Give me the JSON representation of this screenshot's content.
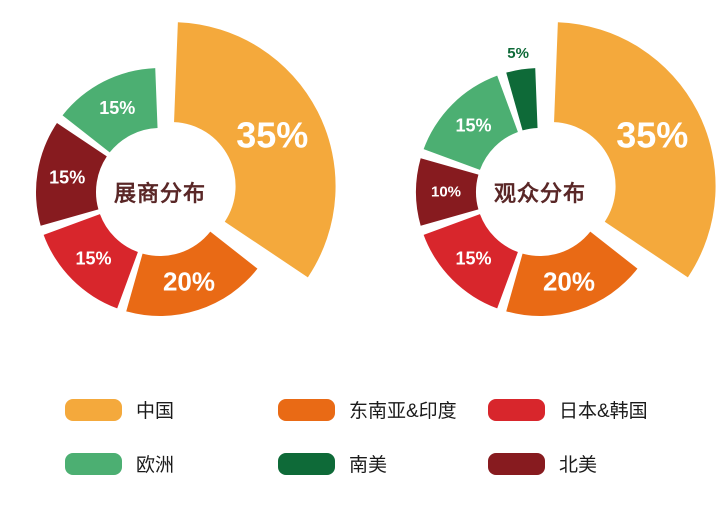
{
  "page": {
    "background": "#ffffff"
  },
  "chart_data": [
    {
      "type": "pie",
      "donut": true,
      "title": "展商分布",
      "title_color": "#5a2727",
      "unit": "%",
      "direction": "clockwise",
      "start_angle": 0,
      "categories": [
        "中国",
        "东南亚&印度",
        "日本&韩国",
        "北美",
        "欧洲"
      ],
      "values": [
        35,
        20,
        15,
        15,
        15
      ],
      "colors": [
        "#F4A93C",
        "#E96A15",
        "#D8262C",
        "#871B1F",
        "#4CAF72"
      ],
      "label_colors": [
        "#ffffff",
        "#ffffff",
        "#ffffff",
        "#ffffff",
        "#ffffff"
      ],
      "label_sizes": [
        36,
        26,
        18,
        18,
        18
      ],
      "slice_styles": [
        "exploded-large",
        "normal",
        "normal",
        "normal",
        "normal"
      ]
    },
    {
      "type": "pie",
      "donut": true,
      "title": "观众分布",
      "title_color": "#5a2727",
      "unit": "%",
      "direction": "clockwise",
      "start_angle": 0,
      "categories": [
        "中国",
        "东南亚&印度",
        "日本&韩国",
        "北美",
        "欧洲",
        "南美"
      ],
      "values": [
        35,
        20,
        15,
        10,
        15,
        5
      ],
      "colors": [
        "#F4A93C",
        "#E96A15",
        "#D8262C",
        "#871B1F",
        "#4CAF72",
        "#0E6A38"
      ],
      "label_colors": [
        "#ffffff",
        "#ffffff",
        "#ffffff",
        "#ffffff",
        "#ffffff",
        "#0E6A38"
      ],
      "label_sizes": [
        36,
        26,
        18,
        15,
        18,
        15
      ],
      "slice_styles": [
        "exploded-large",
        "normal",
        "normal",
        "normal",
        "normal",
        "outside-label"
      ]
    }
  ],
  "legend": {
    "items": [
      {
        "label": "中国",
        "color": "#F4A93C"
      },
      {
        "label": "东南亚&印度",
        "color": "#E96A15"
      },
      {
        "label": "日本&韩国",
        "color": "#D8262C"
      },
      {
        "label": "欧洲",
        "color": "#4CAF72"
      },
      {
        "label": "南美",
        "color": "#0E6A38"
      },
      {
        "label": "北美",
        "color": "#871B1F"
      }
    ]
  }
}
